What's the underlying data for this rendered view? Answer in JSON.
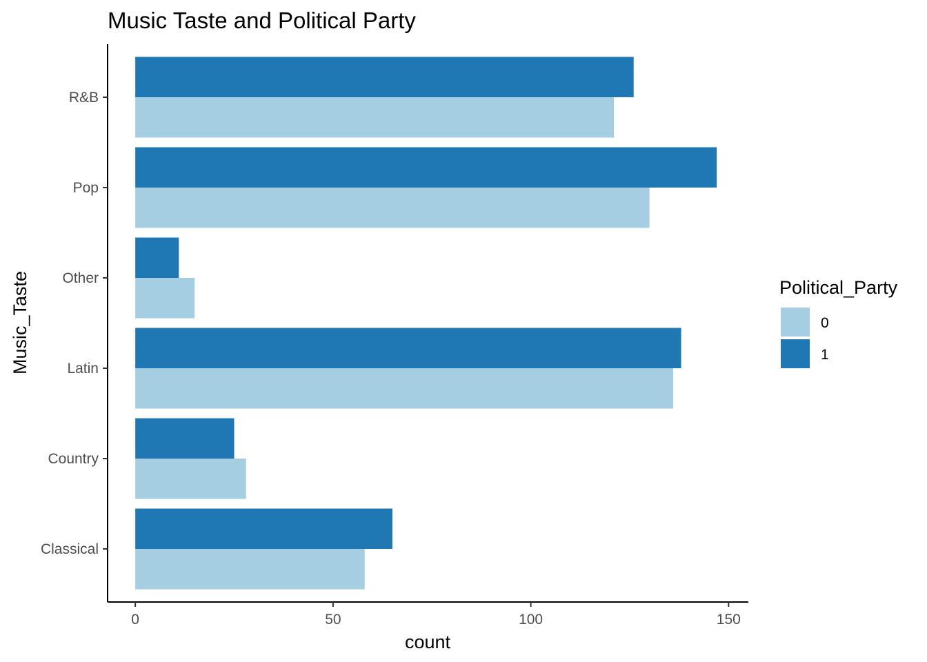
{
  "chart_data": {
    "type": "bar",
    "orientation": "horizontal",
    "title": "Music Taste and Political Party",
    "xlabel": "count",
    "ylabel": "Music_Taste",
    "categories": [
      "Classical",
      "Country",
      "Latin",
      "Other",
      "Pop",
      "R&B"
    ],
    "series": [
      {
        "name": "0",
        "color": "#a6cee3",
        "values": [
          58,
          28,
          136,
          15,
          130,
          121
        ]
      },
      {
        "name": "1",
        "color": "#1f78b4",
        "values": [
          65,
          25,
          138,
          11,
          147,
          126
        ]
      }
    ],
    "xlim": [
      -7,
      155
    ],
    "xticks": [
      0,
      50,
      100,
      150
    ],
    "grid": false,
    "legend": {
      "title": "Political_Party",
      "placement": "right"
    }
  }
}
